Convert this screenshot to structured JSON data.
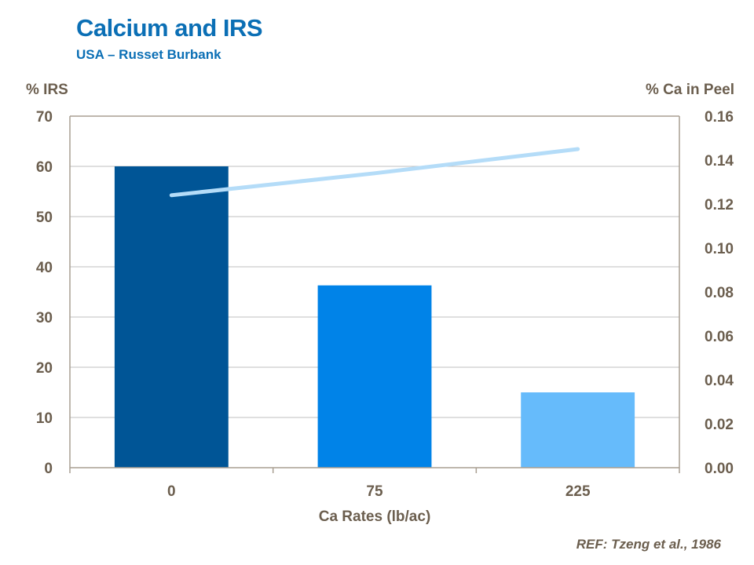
{
  "header": {
    "title": "Calcium and IRS",
    "subtitle": "USA – Russet Burbank"
  },
  "footer": {
    "reference": "REF: Tzeng et al., 1986"
  },
  "colors": {
    "text": "#6B5E4E",
    "title": "#0B6FB5",
    "grid": "#BFBFBF",
    "axis": "#A99F92",
    "line": "#B4DCF8"
  },
  "chart_data": {
    "type": "bar",
    "categories": [
      "0",
      "75",
      "225"
    ],
    "xlabel": "Ca Rates (lb/ac)",
    "y_left": {
      "label": "% IRS",
      "range": [
        0,
        70
      ],
      "ticks": [
        "0",
        "10",
        "20",
        "30",
        "40",
        "50",
        "60",
        "70"
      ]
    },
    "y_right": {
      "label": "% Ca in Peel",
      "range": [
        0,
        0.16
      ],
      "ticks": [
        "0.00",
        "0.02",
        "0.04",
        "0.06",
        "0.08",
        "0.10",
        "0.12",
        "0.14",
        "0.16"
      ]
    },
    "grid": true,
    "series": [
      {
        "type": "bar",
        "axis": "left",
        "values": [
          60,
          36.3,
          15
        ],
        "colors": [
          "#005596",
          "#0083E8",
          "#66BBFB"
        ]
      },
      {
        "type": "line",
        "axis": "right",
        "values": [
          0.124,
          0.134,
          0.145
        ],
        "color": "#B4DCF8"
      }
    ]
  }
}
